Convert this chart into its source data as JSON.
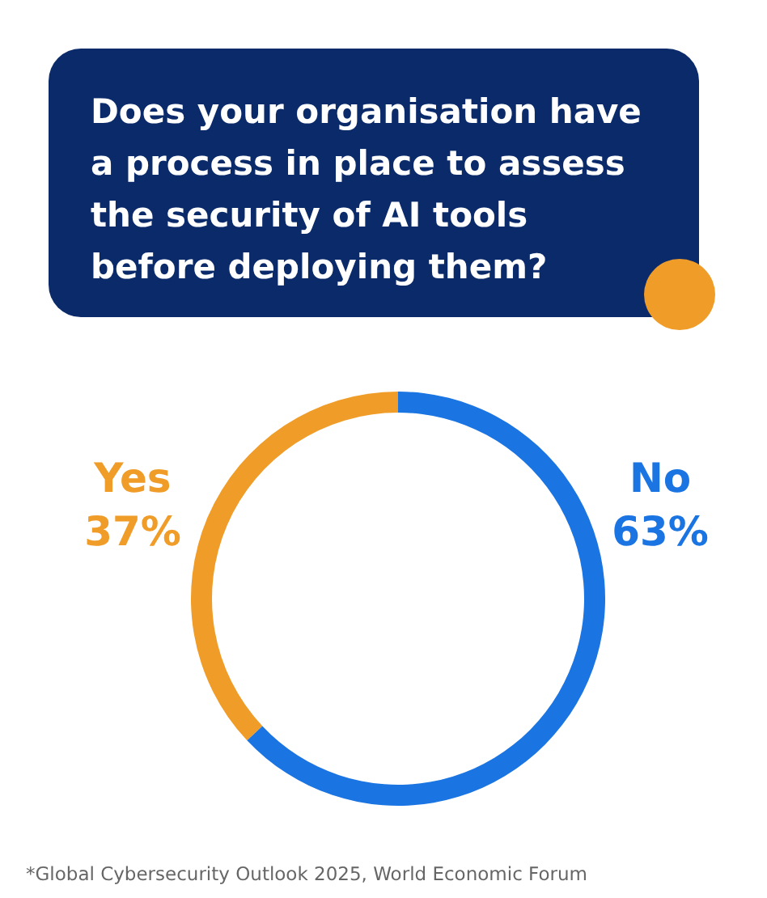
{
  "chart_data": {
    "type": "donut",
    "title": "Does your organisation have a process in place to assess the security of AI tools before deploying them?",
    "categories": [
      "Yes",
      "No"
    ],
    "values": [
      37,
      63
    ],
    "colors": [
      "#f09c28",
      "#1a74e2"
    ],
    "value_labels": [
      "37%",
      "63%"
    ],
    "annotations": [
      "*Global Cybersecurity Outlook 2025, World Economic Forum"
    ]
  }
}
